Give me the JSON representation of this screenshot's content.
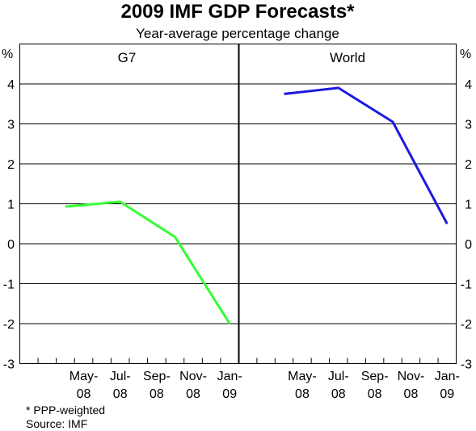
{
  "chart_data": {
    "type": "line",
    "title": "2009 IMF GDP Forecasts*",
    "subtitle": "Year-average percentage change",
    "y_unit_left": "%",
    "y_unit_right": "%",
    "ylim": [
      -3,
      5
    ],
    "yticks": [
      -3,
      -2,
      -1,
      0,
      1,
      2,
      3,
      4
    ],
    "grid": true,
    "x_ticks": [
      {
        "top": "May-",
        "bottom": "08"
      },
      {
        "top": "Jul-",
        "bottom": "08"
      },
      {
        "top": "Sep-",
        "bottom": "08"
      },
      {
        "top": "Nov-",
        "bottom": "08"
      },
      {
        "top": "Jan-",
        "bottom": "09"
      }
    ],
    "panels": [
      {
        "label": "G7",
        "series_color": "#33ff33",
        "x": [
          "Apr-08",
          "Jul-08",
          "Oct-08",
          "Jan-09"
        ],
        "values": [
          0.93,
          1.05,
          0.17,
          -2.0
        ]
      },
      {
        "label": "World",
        "series_color": "#1a1adf",
        "x": [
          "Apr-08",
          "Jul-08",
          "Oct-08",
          "Jan-09"
        ],
        "values": [
          3.75,
          3.9,
          3.05,
          0.5
        ]
      }
    ]
  },
  "footnotes": {
    "note": "*   PPP-weighted",
    "source": "Source: IMF"
  }
}
